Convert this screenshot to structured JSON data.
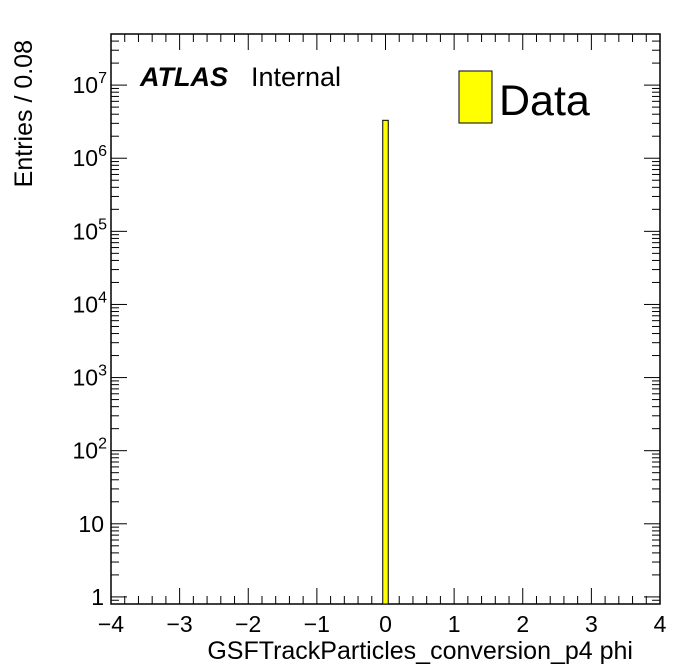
{
  "chart_data": {
    "type": "bar",
    "xlabel": "GSFTrackParticles_conversion_p4 phi",
    "ylabel": "Entries / 0.08",
    "xlim": [
      -4,
      4
    ],
    "ylim": [
      0.8,
      50000000
    ],
    "yscale": "log",
    "bin_width": 0.08,
    "x_ticks": [
      "−4",
      "−3",
      "−2",
      "−1",
      "0",
      "1",
      "2",
      "3",
      "4"
    ],
    "y_ticks": [
      {
        "base": "1",
        "exp": ""
      },
      {
        "base": "10",
        "exp": ""
      },
      {
        "base": "10",
        "exp": "2"
      },
      {
        "base": "10",
        "exp": "3"
      },
      {
        "base": "10",
        "exp": "4"
      },
      {
        "base": "10",
        "exp": "5"
      },
      {
        "base": "10",
        "exp": "6"
      },
      {
        "base": "10",
        "exp": "7"
      }
    ],
    "series": [
      {
        "name": "Data",
        "color": "#ffff00",
        "bins": [
          {
            "x_low": -0.04,
            "x_high": 0.04,
            "value": 3300000
          }
        ]
      }
    ],
    "legend": {
      "label": "Data",
      "position": "top-right"
    },
    "annotation": {
      "bold_text": "ATLAS",
      "text": "Internal"
    }
  }
}
